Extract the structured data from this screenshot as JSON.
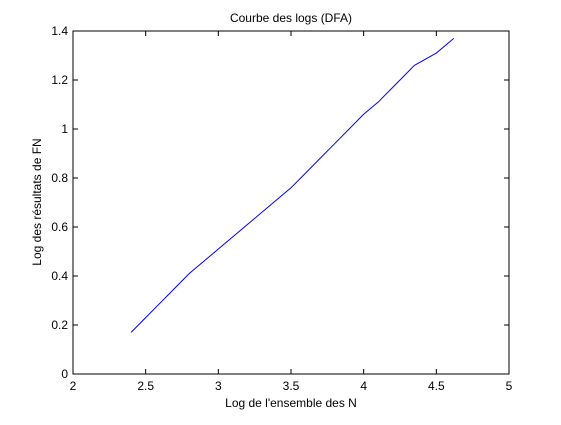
{
  "colors": {
    "background": "#ffffff",
    "axes": "#000000",
    "series": "#0000ff"
  },
  "chart_data": {
    "type": "line",
    "title": "Courbe des logs (DFA)",
    "xlabel": "Log de l'ensemble des N",
    "ylabel": "Log des résultats de FN",
    "xlim": [
      2,
      5
    ],
    "ylim": [
      0,
      1.4
    ],
    "xticks": [
      2,
      2.5,
      3,
      3.5,
      4,
      4.5,
      5
    ],
    "yticks": [
      0,
      0.2,
      0.4,
      0.6,
      0.8,
      1,
      1.2,
      1.4
    ],
    "xtick_labels": [
      "2",
      "2.5",
      "3",
      "3.5",
      "4",
      "4.5",
      "5"
    ],
    "ytick_labels": [
      "0",
      "0.2",
      "0.4",
      "0.6",
      "0.8",
      "1",
      "1.2",
      "1.4"
    ],
    "grid": false,
    "series": [
      {
        "color": "#0000ff",
        "x": [
          2.4,
          2.5,
          2.6,
          2.7,
          2.8,
          2.9,
          3.0,
          3.1,
          3.2,
          3.3,
          3.4,
          3.5,
          3.6,
          3.7,
          3.8,
          3.9,
          4.0,
          4.1,
          4.2,
          4.35,
          4.5,
          4.62
        ],
        "y": [
          0.17,
          0.23,
          0.29,
          0.35,
          0.41,
          0.46,
          0.51,
          0.56,
          0.61,
          0.66,
          0.71,
          0.76,
          0.82,
          0.88,
          0.94,
          1.0,
          1.06,
          1.11,
          1.17,
          1.26,
          1.31,
          1.37
        ]
      }
    ]
  }
}
